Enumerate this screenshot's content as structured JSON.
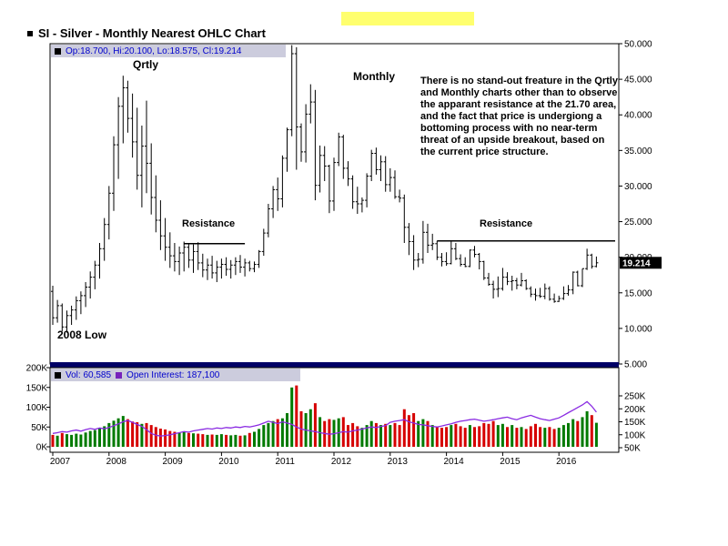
{
  "page": {
    "title": "SI - Silver - Monthly Nearest OHLC Chart"
  },
  "price_panel": {
    "legend_text": "Op:18.700, Hi:20.100, Lo:18.575, Cl:19.214"
  },
  "volume_panel": {
    "vol_label": "Vol: 60,585",
    "oi_label": "Open Interest: 187,100"
  },
  "annotations": {
    "qrtly": "Qrtly",
    "monthly": "Monthly",
    "resistance_left": "Resistance",
    "resistance_right": "Resistance",
    "low_2008": "2008 Low",
    "commentary": "There is no stand-out freature in the Qrtly and Monthly charts other than to observe the apparant resistance at the 21.70 area, and the fact that price is undergiong a bottoming process with no near-term threat of an upside breakout, based on the current price structure."
  },
  "colors": {
    "bar": "#000000",
    "up_volume": "#007a00",
    "down_volume": "#d60000",
    "open_interest": "#8a2be2",
    "separator": "#000066",
    "legend_bg": "#ccccdd",
    "legend_text": "#0000cc",
    "highlight": "#ffff6e",
    "price_tag_bg": "#000000",
    "price_tag_text": "#ffffff"
  },
  "chart_data": {
    "type": "ohlc+volume",
    "title": "SI - Silver - Monthly Nearest OHLC Chart",
    "start_month": "2007-01",
    "x_axis_years": [
      "2007",
      "2008",
      "2009",
      "2010",
      "2011",
      "2012",
      "2013",
      "2014",
      "2015",
      "2016"
    ],
    "price_axis": {
      "min": 5,
      "max": 50,
      "labels": [
        "50.000",
        "45.000",
        "40.000",
        "35.000",
        "30.000",
        "25.000",
        "20.000",
        "15.000",
        "10.000",
        "5.000"
      ]
    },
    "volume_axis_left": [
      "200K",
      "150K",
      "100K",
      "50K",
      "0K"
    ],
    "oi_axis_right": [
      "250K",
      "200K",
      "150K",
      "100K",
      "50K"
    ],
    "current": {
      "open": "18.700",
      "high": "20.100",
      "low": "18.575",
      "close": "19.214",
      "volume": "60,585",
      "open_interest": "187,100"
    },
    "resistance_lines": [
      {
        "from_index": 28,
        "to_index": 41,
        "price": 21.9
      },
      {
        "from_index": 82,
        "to_index": 120,
        "price": 22.3
      }
    ],
    "ohlcv": [
      [
        15.2,
        16,
        10.5,
        11.5,
        30
      ],
      [
        11.5,
        14,
        10.8,
        13.2,
        28
      ],
      [
        13.2,
        13.5,
        9.6,
        10.2,
        35
      ],
      [
        10.2,
        12.5,
        9.4,
        11.8,
        32
      ],
      [
        11.8,
        13.2,
        10.5,
        12.6,
        30
      ],
      [
        12.6,
        14.5,
        11.2,
        13.9,
        33
      ],
      [
        13.9,
        15.2,
        12,
        14.6,
        31
      ],
      [
        14.6,
        16.5,
        13,
        15.8,
        36
      ],
      [
        15.8,
        18,
        14.2,
        17.2,
        40
      ],
      [
        17.2,
        19.5,
        15.5,
        18.9,
        42
      ],
      [
        18.9,
        22,
        17,
        21.2,
        48
      ],
      [
        21.2,
        25.5,
        19.5,
        24.6,
        52
      ],
      [
        24.6,
        30,
        22.5,
        29,
        60
      ],
      [
        29,
        37,
        26.5,
        35.8,
        66
      ],
      [
        35.8,
        42.5,
        31,
        41.2,
        72
      ],
      [
        41.2,
        45.5,
        36,
        43.8,
        78
      ],
      [
        43.8,
        44.8,
        37.5,
        39.5,
        70
      ],
      [
        39.5,
        43,
        34,
        36.2,
        64
      ],
      [
        36.2,
        41,
        29.5,
        31.5,
        62
      ],
      [
        31.5,
        38.5,
        27,
        35.6,
        58
      ],
      [
        35.6,
        42,
        29,
        33.2,
        60
      ],
      [
        33.2,
        36,
        26,
        28.4,
        55
      ],
      [
        28.4,
        31.5,
        23.5,
        25.2,
        50
      ],
      [
        25.2,
        28,
        21,
        23,
        46
      ],
      [
        23,
        25.5,
        19.5,
        21.4,
        44
      ],
      [
        21.4,
        23.5,
        18.5,
        20.2,
        40
      ],
      [
        20.2,
        22,
        18,
        19.4,
        38
      ],
      [
        19.4,
        21.5,
        17.5,
        20.6,
        36
      ],
      [
        20.6,
        22.2,
        18,
        21.4,
        38
      ],
      [
        21.4,
        22,
        18.5,
        19.6,
        35
      ],
      [
        19.6,
        21.8,
        17.8,
        20.8,
        34
      ],
      [
        20.8,
        22.1,
        18.2,
        19.2,
        33
      ],
      [
        19.2,
        20.5,
        17.2,
        18.2,
        32
      ],
      [
        18.2,
        19.8,
        16.8,
        18.9,
        30
      ],
      [
        18.9,
        20.2,
        17,
        17.8,
        31
      ],
      [
        17.8,
        19.5,
        16.5,
        18.6,
        30
      ],
      [
        18.6,
        19.8,
        17,
        19,
        32
      ],
      [
        19,
        20,
        17.4,
        18.3,
        30
      ],
      [
        18.3,
        19.6,
        17,
        18.9,
        29
      ],
      [
        18.9,
        20,
        17.5,
        19.4,
        30
      ],
      [
        19.4,
        20.3,
        17.8,
        18.6,
        28
      ],
      [
        18.6,
        19.8,
        17.3,
        19.2,
        29
      ],
      [
        19.2,
        19.5,
        18,
        18.4,
        35
      ],
      [
        18.4,
        19.4,
        17.9,
        19,
        38
      ],
      [
        19,
        21,
        18.5,
        20.8,
        45
      ],
      [
        20.8,
        24,
        20.2,
        23.4,
        55
      ],
      [
        23.4,
        27.5,
        22.8,
        26.8,
        60
      ],
      [
        26.8,
        30,
        25.5,
        29.5,
        65
      ],
      [
        29.5,
        31.2,
        26.5,
        28.2,
        70
      ],
      [
        28.2,
        34.3,
        27,
        33.9,
        72
      ],
      [
        33.9,
        38.2,
        32,
        37.9,
        85
      ],
      [
        37.9,
        49.8,
        37,
        48.6,
        150
      ],
      [
        48.6,
        49.5,
        32.3,
        38.3,
        155
      ],
      [
        38.3,
        38.8,
        33.4,
        34.8,
        90
      ],
      [
        34.8,
        41.5,
        33.3,
        40.1,
        85
      ],
      [
        40.1,
        44.3,
        38.8,
        41.8,
        95
      ],
      [
        41.8,
        43.5,
        28,
        30.1,
        110
      ],
      [
        30.1,
        35.7,
        29.1,
        34.3,
        75
      ],
      [
        34.3,
        35.6,
        30.7,
        32.8,
        65
      ],
      [
        32.8,
        33,
        26.2,
        27.9,
        70
      ],
      [
        27.9,
        34,
        26.5,
        33.3,
        68
      ],
      [
        33.3,
        37.5,
        32.8,
        36.9,
        72
      ],
      [
        36.9,
        37.2,
        31,
        32.5,
        75
      ],
      [
        32.5,
        33.5,
        30,
        31,
        55
      ],
      [
        31,
        31.5,
        26.8,
        27.8,
        60
      ],
      [
        27.8,
        29.9,
        26.1,
        27.5,
        52
      ],
      [
        27.5,
        28.4,
        26.3,
        28,
        48
      ],
      [
        28,
        31.8,
        27,
        31.4,
        55
      ],
      [
        31.4,
        35.1,
        30.7,
        34.6,
        65
      ],
      [
        34.6,
        35.4,
        31.6,
        32.3,
        60
      ],
      [
        32.3,
        34.3,
        30.7,
        33.4,
        55
      ],
      [
        33.4,
        34.2,
        29.2,
        30.2,
        58
      ],
      [
        30.2,
        32.5,
        29.2,
        31.2,
        55
      ],
      [
        31.2,
        32.2,
        28.2,
        28.5,
        60
      ],
      [
        28.5,
        29.5,
        27.7,
        28.3,
        55
      ],
      [
        28.3,
        28.8,
        22,
        24.2,
        95
      ],
      [
        24.2,
        24.8,
        20.3,
        22.2,
        80
      ],
      [
        22.2,
        23.1,
        18.2,
        19.6,
        85
      ],
      [
        19.6,
        20.6,
        18.6,
        19.7,
        65
      ],
      [
        19.7,
        25.1,
        19.1,
        23.5,
        70
      ],
      [
        23.5,
        24.7,
        20.6,
        21.7,
        65
      ],
      [
        21.7,
        23.3,
        21,
        21.9,
        55
      ],
      [
        21.9,
        22.3,
        19.6,
        20,
        50
      ],
      [
        20,
        20.6,
        18.7,
        19.4,
        48
      ],
      [
        19.4,
        20.7,
        18.8,
        19.1,
        50
      ],
      [
        19.1,
        22.2,
        19,
        21.2,
        55
      ],
      [
        21.2,
        22,
        19.6,
        19.8,
        58
      ],
      [
        19.8,
        20.4,
        18.7,
        19,
        52
      ],
      [
        19,
        20,
        18.6,
        18.7,
        48
      ],
      [
        18.7,
        21.1,
        18.6,
        21,
        55
      ],
      [
        21,
        21.6,
        20,
        20.4,
        50
      ],
      [
        20.4,
        20.6,
        18.3,
        19.4,
        52
      ],
      [
        19.4,
        19.5,
        16.8,
        17.1,
        60
      ],
      [
        17.1,
        17.8,
        16,
        16.2,
        58
      ],
      [
        16.2,
        16.7,
        14.2,
        15.5,
        65
      ],
      [
        15.5,
        17.3,
        14.4,
        15.6,
        55
      ],
      [
        15.6,
        18.5,
        15.3,
        17.2,
        58
      ],
      [
        17.2,
        17.9,
        16.1,
        16.6,
        50
      ],
      [
        16.6,
        17.4,
        15.3,
        16.7,
        55
      ],
      [
        16.7,
        17.1,
        15.5,
        16.1,
        48
      ],
      [
        16.1,
        17.8,
        15.9,
        16.7,
        50
      ],
      [
        16.7,
        16.9,
        15.4,
        15.6,
        45
      ],
      [
        15.6,
        15.9,
        14.4,
        14.8,
        52
      ],
      [
        14.8,
        15.6,
        13.9,
        14.6,
        58
      ],
      [
        14.6,
        15.7,
        14.3,
        14.5,
        50
      ],
      [
        14.5,
        16.3,
        14.1,
        15.6,
        48
      ],
      [
        15.6,
        15.9,
        13.9,
        14.1,
        50
      ],
      [
        14.1,
        14.9,
        13.6,
        13.8,
        45
      ],
      [
        13.8,
        14.6,
        13.7,
        14.2,
        48
      ],
      [
        14.2,
        15.9,
        14,
        14.9,
        55
      ],
      [
        14.9,
        16.1,
        14.6,
        15.4,
        60
      ],
      [
        15.4,
        18,
        14.8,
        17.9,
        70
      ],
      [
        17.9,
        18.1,
        15.9,
        16,
        65
      ],
      [
        16,
        18.4,
        15.8,
        18.4,
        75
      ],
      [
        18.4,
        21.2,
        18.2,
        20.3,
        90
      ],
      [
        20.3,
        20.5,
        18.4,
        18.7,
        80
      ],
      [
        18.7,
        20.1,
        18.575,
        19.214,
        60.585
      ]
    ],
    "open_interest_k": [
      105,
      108,
      112,
      110,
      115,
      118,
      114,
      120,
      124,
      121,
      126,
      123,
      128,
      135,
      142,
      150,
      155,
      148,
      140,
      132,
      120,
      105,
      98,
      95,
      97,
      100,
      104,
      108,
      112,
      110,
      115,
      118,
      121,
      124,
      122,
      126,
      124,
      128,
      126,
      130,
      128,
      132,
      130,
      134,
      138,
      145,
      152,
      148,
      143,
      150,
      145,
      140,
      130,
      122,
      118,
      115,
      112,
      108,
      105,
      102,
      104,
      108,
      112,
      110,
      115,
      118,
      122,
      126,
      130,
      128,
      132,
      135,
      148,
      152,
      155,
      158,
      150,
      145,
      140,
      138,
      135,
      132,
      130,
      134,
      138,
      142,
      148,
      152,
      155,
      158,
      160,
      156,
      152,
      155,
      158,
      162,
      165,
      168,
      162,
      158,
      165,
      170,
      175,
      168,
      162,
      158,
      155,
      160,
      165,
      175,
      185,
      195,
      205,
      215,
      228,
      210,
      187.1
    ]
  }
}
